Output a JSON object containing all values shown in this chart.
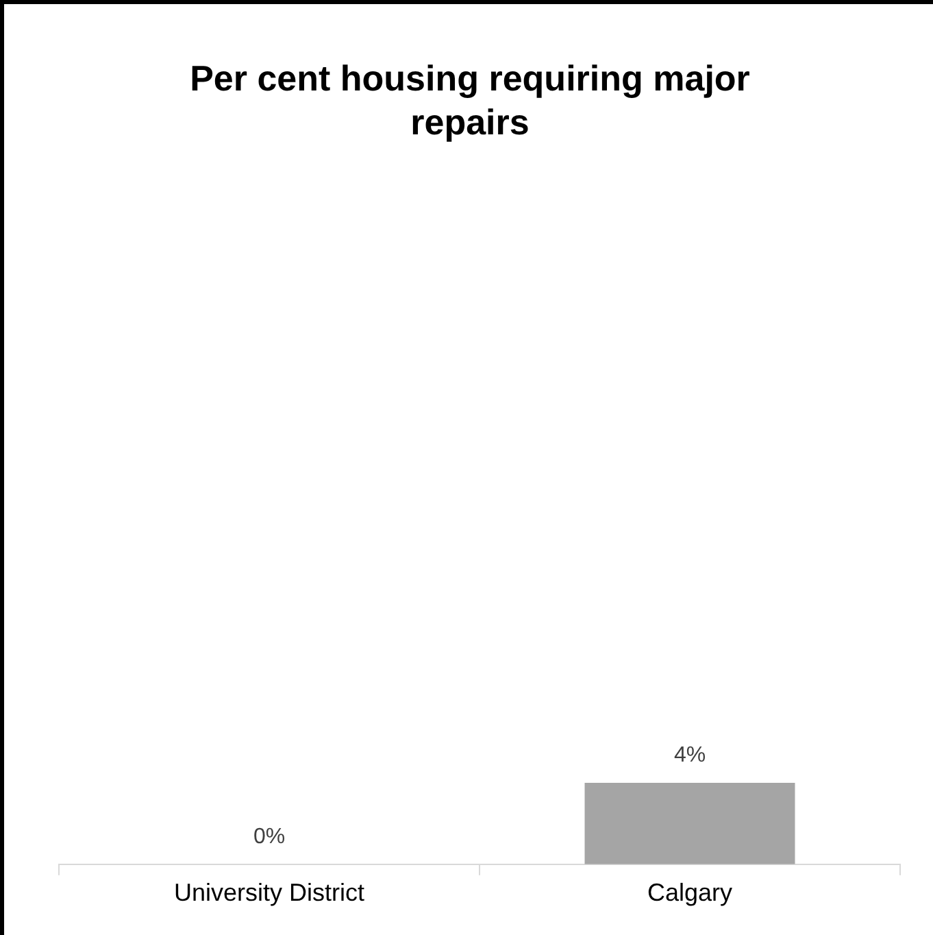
{
  "chart_data": {
    "type": "bar",
    "title": "Per cent housing requiring major repairs",
    "categories": [
      "University District",
      "Calgary"
    ],
    "values": [
      0,
      4
    ],
    "color": "#a5a5a5",
    "value_labels": [
      "0%",
      "4%"
    ],
    "tick_labels": "x",
    "grid": false,
    "legend": false
  }
}
